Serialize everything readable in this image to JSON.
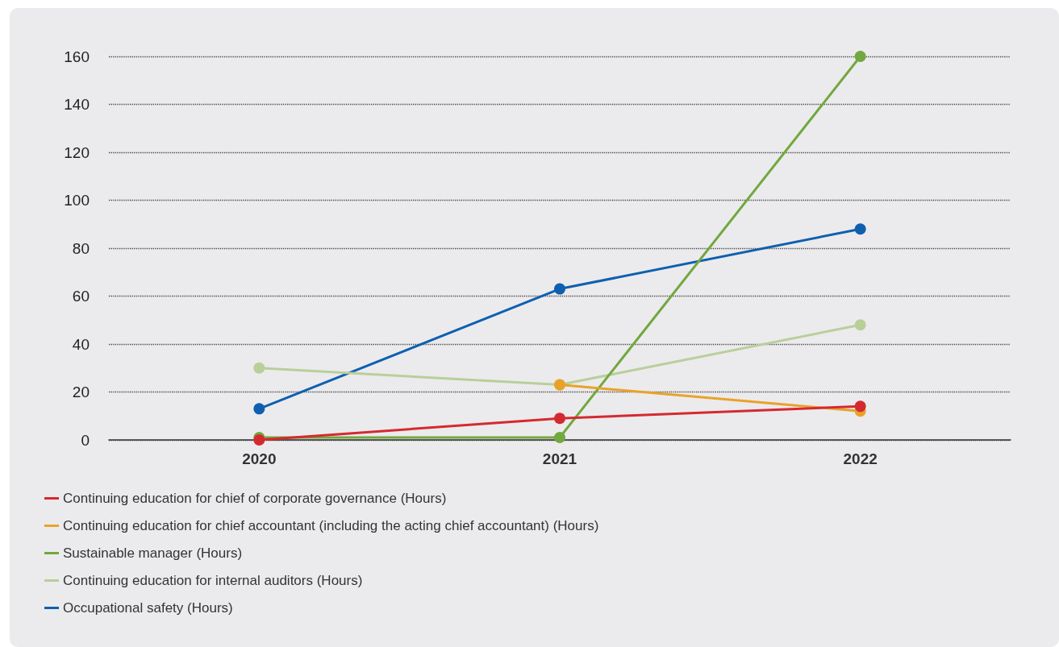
{
  "chart_data": {
    "type": "line",
    "categories": [
      "2020",
      "2021",
      "2022"
    ],
    "series": [
      {
        "name": "Continuing education for chief of corporate governance (Hours)",
        "color": "#d42a2f",
        "values": [
          0,
          9,
          14
        ]
      },
      {
        "name": "Continuing education for chief accountant (including the acting chief accountant) (Hours)",
        "color": "#e9a229",
        "values": [
          null,
          23,
          12
        ]
      },
      {
        "name": "Sustainable manager (Hours)",
        "color": "#72a83f",
        "values": [
          1,
          1,
          160
        ]
      },
      {
        "name": "Continuing education for internal auditors (Hours)",
        "color": "#b9cf9a",
        "values": [
          30,
          23,
          48
        ]
      },
      {
        "name": "Occupational safety (Hours)",
        "color": "#0f5fb0",
        "values": [
          13,
          63,
          88
        ]
      }
    ],
    "ylim": [
      0,
      160
    ],
    "yticks": [
      0,
      20,
      40,
      60,
      80,
      100,
      120,
      140,
      160
    ],
    "grid": "y",
    "legend": "bottom left",
    "marker": "circle",
    "line_style": "solid"
  }
}
